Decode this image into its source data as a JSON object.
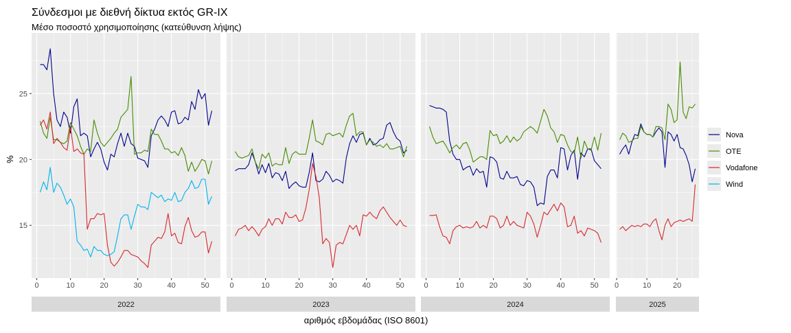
{
  "chart_data": {
    "type": "line",
    "title": "Σύνδεσμοι με διεθνή δίκτυα εκτός GR-IX",
    "subtitle": "Μέσο ποσοστό χρησιμοποίησης (κατεύθυνση λήψης)",
    "xlabel": "αριθμός εβδομάδας (ISO 8601)",
    "ylabel": "%",
    "ylim": [
      11,
      29.6
    ],
    "yticks": [
      15,
      20,
      25
    ],
    "grid": true,
    "legend_position": "right",
    "series_names": [
      "Nova",
      "OTE",
      "Vodafone",
      "Wind"
    ],
    "colors": {
      "Nova": "#00008B",
      "OTE": "#458B00",
      "Vodafone": "#D7262B",
      "Wind": "#00B2EE"
    },
    "facets": [
      {
        "label": "2022",
        "xlim": [
          1,
          52
        ],
        "xticks": [
          0,
          10,
          20,
          30,
          40,
          50
        ],
        "series": {
          "Nova": [
            27.2,
            27.2,
            26.8,
            28.4,
            25,
            23,
            22.5,
            23.6,
            23.2,
            22,
            24,
            24.6,
            21.8,
            22,
            21.8,
            20.2,
            20.8,
            21.3,
            20.8,
            19.8,
            19.2,
            20.4,
            20.2,
            21.2,
            22,
            21,
            22,
            21.2,
            21,
            20.1,
            20,
            19.9,
            19.4,
            21.8,
            22.3,
            23,
            23.3,
            23,
            22.5,
            23.6,
            23.7,
            22.7,
            22.8,
            23.2,
            23,
            24.4,
            23.8,
            25.3,
            24.6,
            25,
            22.6,
            23.7
          ],
          "OTE": [
            22.9,
            22,
            21.6,
            23.2,
            21.5,
            21.5,
            21.3,
            21.2,
            21.4,
            22.8,
            22.3,
            21.8,
            21,
            20.4,
            20.8,
            20.6,
            23,
            22,
            21.3,
            21,
            21.3,
            21.6,
            22,
            22.3,
            23.2,
            23.5,
            23.8,
            26.3,
            20.4,
            20.5,
            20.5,
            20.7,
            20.6,
            22.3,
            21.9,
            21.9,
            21.4,
            20.8,
            20.8,
            20.5,
            20.6,
            20.3,
            20.9,
            20.3,
            19.1,
            19.8,
            19.1,
            19.5,
            20,
            19.9,
            18.9,
            19.9
          ],
          "Vodafone": [
            22.6,
            23,
            22.3,
            23.6,
            21.2,
            21.6,
            21.3,
            20.9,
            20.7,
            22.5,
            20.6,
            20.8,
            20.5,
            20.4,
            14.7,
            15.5,
            15.5,
            15.9,
            15.8,
            15.9,
            13.5,
            12.2,
            11.9,
            12.2,
            12.6,
            13.1,
            13.1,
            12.8,
            12.7,
            12.6,
            12.3,
            12.1,
            11.8,
            13.5,
            13.8,
            14.1,
            14,
            14.5,
            15.9,
            14.2,
            14.4,
            13.7,
            13.6,
            14.9,
            15.6,
            14.6,
            14.1,
            14.2,
            14.5,
            14.5,
            12.9,
            13.8
          ],
          "Wind": [
            17.5,
            18.3,
            17.7,
            19.4,
            17.5,
            18.2,
            17.9,
            17.3,
            16.6,
            17,
            16.4,
            13.8,
            13.5,
            13.1,
            13.2,
            12.6,
            13.4,
            13.1,
            13.1,
            12.8,
            12.7,
            12.8,
            13,
            14.2,
            15.5,
            15.8,
            15.8,
            14.7,
            15.7,
            16.6,
            16.4,
            16.4,
            16.2,
            17.5,
            17.3,
            17.1,
            17.3,
            16.8,
            17,
            16.9,
            17.5,
            16.8,
            16.9,
            17.5,
            17.8,
            18.4,
            17.8,
            17.9,
            18.5,
            18.5,
            16.6,
            17.2
          ]
        }
      },
      {
        "label": "2023",
        "xlim": [
          1,
          52
        ],
        "xticks": [
          0,
          10,
          20,
          30,
          40,
          50
        ],
        "series": {
          "Nova": [
            19.15,
            19.3,
            19.3,
            19.3,
            19.6,
            20.5,
            19.8,
            18.9,
            19.6,
            19,
            19.7,
            18.6,
            19,
            18.9,
            18.4,
            19.1,
            17.8,
            18.1,
            18.3,
            18,
            17.9,
            17.9,
            19,
            20.5,
            18.4,
            18.3,
            18.5,
            19.1,
            18.8,
            18.3,
            18.5,
            18.4,
            18.2,
            20.1,
            21.2,
            21.8,
            21.3,
            21.9,
            22,
            21.1,
            21.6,
            21.1,
            21.2,
            21.5,
            21.6,
            22.6,
            22.8,
            22.1,
            21.6,
            21.4,
            20.5,
            20.7
          ],
          "OTE": [
            20.6,
            20.2,
            20.1,
            20.2,
            20.3,
            20.8,
            19.8,
            19.3,
            20.4,
            20.1,
            20.5,
            19.5,
            19.7,
            19.6,
            19.6,
            20.9,
            19.7,
            20.4,
            20.6,
            20.4,
            20.4,
            20.4,
            21.6,
            23,
            21.4,
            21.3,
            21.1,
            21.9,
            22,
            21.8,
            21.9,
            22,
            21.7,
            22.6,
            23.3,
            23.5,
            21.8,
            22.1,
            22.1,
            21.1,
            21.5,
            21.3,
            21,
            21.1,
            20.9,
            21.2,
            20.8,
            20.8,
            20.9,
            21,
            20.2,
            21
          ],
          "Vodafone": [
            14.2,
            14.7,
            14.8,
            15,
            14.6,
            14.9,
            14.6,
            14.2,
            14.7,
            14.9,
            15.5,
            15,
            15.5,
            15.5,
            15.1,
            16,
            15.6,
            15.6,
            15.8,
            15.3,
            15.4,
            16.3,
            17.7,
            19.7,
            18.7,
            17.1,
            13.6,
            14,
            13.7,
            11.8,
            13.5,
            13.7,
            13.6,
            14.3,
            15,
            14.7,
            15,
            14.2,
            15.8,
            15.7,
            16,
            15.7,
            15.5,
            16.1,
            16.4,
            16,
            15.6,
            15.3,
            15,
            15.4,
            15,
            14.9
          ]
        }
      },
      {
        "label": "2024",
        "xlim": [
          1,
          52
        ],
        "xticks": [
          0,
          10,
          20,
          30,
          40,
          50
        ],
        "series": {
          "Nova": [
            24.1,
            24,
            23.9,
            23.9,
            23.8,
            23.6,
            21.4,
            20.4,
            20,
            20,
            19.2,
            19.4,
            19.5,
            18.8,
            19.3,
            19,
            19.1,
            17.9,
            20.2,
            20.1,
            19.8,
            18.6,
            18.5,
            19.1,
            18.6,
            18.6,
            18.7,
            18.1,
            18,
            18.4,
            18.3,
            17.9,
            16.5,
            16.7,
            16.6,
            18.7,
            19.2,
            19.2,
            18.6,
            20.9,
            20.8,
            19.2,
            20.3,
            20.7,
            18.5,
            20.5,
            20.2,
            20.8,
            20.8,
            19.9,
            19.6,
            19.3
          ],
          "OTE": [
            22.5,
            21.7,
            21.2,
            21.3,
            21.4,
            21,
            20.5,
            20.9,
            21.1,
            20.8,
            21.2,
            21.3,
            20.7,
            19.8,
            20,
            20.2,
            20.2,
            20,
            22.2,
            21.8,
            21.9,
            21.2,
            21.4,
            21.8,
            21.3,
            21.7,
            21.4,
            21.6,
            22.1,
            22.3,
            22.5,
            22.3,
            22,
            22.9,
            23.8,
            23.3,
            22.4,
            22.1,
            21.3,
            21.9,
            21.8,
            21.1,
            20.6,
            20.5,
            21.7,
            20.1,
            21.4,
            20.8,
            20.7,
            21.7,
            20.7,
            22
          ],
          "Vodafone": [
            15.75,
            15.75,
            15.8,
            14.9,
            14.2,
            14.1,
            13.6,
            14.6,
            14.9,
            15,
            14.8,
            14.9,
            14.8,
            14.9,
            15.3,
            14.8,
            15,
            14.8,
            15.7,
            15.7,
            15.5,
            14.8,
            15,
            15.7,
            15,
            15.3,
            15,
            14.9,
            14.8,
            16,
            15.7,
            15.1,
            14.1,
            15,
            16,
            15.8,
            16.2,
            16.6,
            16.1,
            16.7,
            16.4,
            14.9,
            15,
            15.7,
            14.4,
            14.6,
            14.2,
            14.8,
            14.7,
            14.6,
            14.4,
            13.7
          ]
        }
      },
      {
        "label": "2025",
        "xlim": [
          1,
          26
        ],
        "xticks": [
          0,
          10,
          20
        ],
        "series": {
          "Nova": [
            20.4,
            20.8,
            21.1,
            20.4,
            21.3,
            21.9,
            21.8,
            22.7,
            22.1,
            21.9,
            21.9,
            21.7,
            22.1,
            22.4,
            22.1,
            19.4,
            22.1,
            21.9,
            21.4,
            21.9,
            20.9,
            20.8,
            20.3,
            19.6,
            18.3,
            19.3
          ],
          "OTE": [
            21.5,
            22,
            21.8,
            21.3,
            21.4,
            21.6,
            21.6,
            22.5,
            22.1,
            21.9,
            21.9,
            21.7,
            22.5,
            22.5,
            22.4,
            21.5,
            24.2,
            23.8,
            22.8,
            23,
            27.4,
            23.6,
            23.1,
            24,
            23.9,
            24.2
          ],
          "Vodafone": [
            14.7,
            14.9,
            14.6,
            14.8,
            15,
            14.9,
            15,
            14.9,
            15.1,
            15.1,
            14.9,
            15.3,
            15.5,
            14.6,
            13.9,
            15,
            15.5,
            14.9,
            15.2,
            15.3,
            15.4,
            15.3,
            15.4,
            15.5,
            15.3,
            18.1
          ]
        }
      }
    ]
  }
}
